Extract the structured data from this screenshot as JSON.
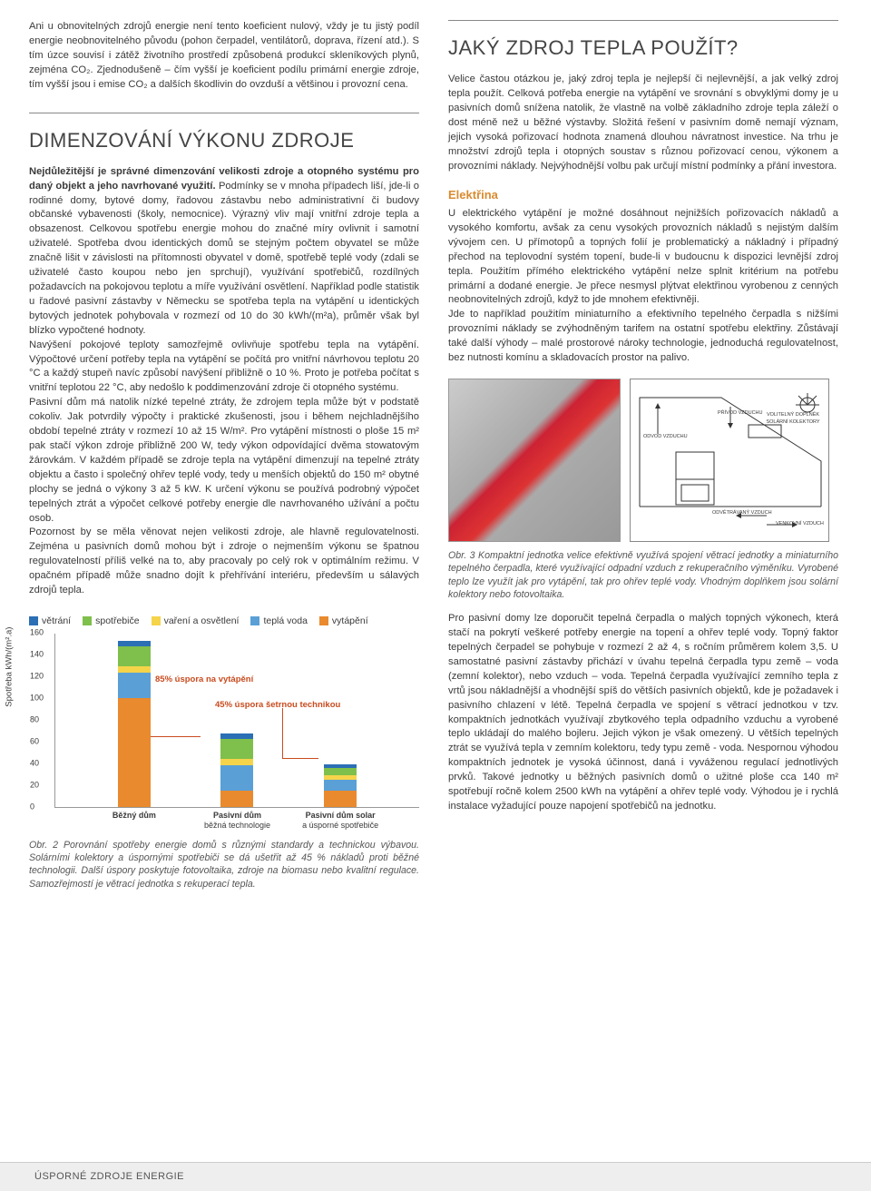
{
  "left": {
    "para1": "Ani u obnovitelných zdrojů energie není tento koeficient nulový, vždy je tu jistý podíl energie neobnovitelného původu (pohon čerpadel, ventilátorů, doprava, řízení atd.). S tím úzce souvisí i zátěž životního prostředí způsobená produkcí skleníkových plynů, zejména CO₂. Zjednodušeně – čím vyšší je koeficient podílu primární energie zdroje, tím vyšší jsou i emise CO₂ a dalších škodlivin do ovzduší a většinou i provozní cena.",
    "h2": "DIMENZOVÁNÍ VÝKONU ZDROJE",
    "lead": "Nejdůležitější je správné dimenzování velikosti zdroje a otopného systému pro daný objekt a jeho navrhované využití.",
    "para2a": " Podmínky se v mnoha případech liší, jde-li o rodinné domy, bytové domy, řadovou zástavbu nebo administrativní či budovy občanské vybavenosti (školy, nemocnice). Výrazný vliv mají vnitřní zdroje tepla a obsazenost. Celkovou spotřebu energie mohou do značné míry ovlivnit i samotní uživatelé. Spotřeba dvou identických domů se stejným počtem obyvatel se může značně lišit v závislosti na přítomnosti obyvatel v domě, spotřebě teplé vody (zdali se uživatelé často koupou nebo jen sprchují), využívání spotřebičů, rozdílných požadavcích na pokojovou teplotu a míře využívání osvětlení. Například podle statistik u řadové pasivní zástavby v Německu se spotřeba tepla na vytápění u identických bytových jednotek pohybovala v rozmezí od 10 do 30 kWh/(m²a), průměr však byl blízko vypočtené hodnoty.",
    "para2b": "Navýšení pokojové teploty samozřejmě ovlivňuje spotřebu tepla na vytápění. Výpočtové určení potřeby tepla na vytápění se počítá pro vnitřní návrhovou teplotu 20 °C a každý stupeň navíc způsobí navýšení přibližně o 10 %. Proto je potřeba počítat s vnitřní teplotou 22 °C, aby nedošlo k poddimenzování zdroje či otopného systému.",
    "para2c": "Pasivní dům má natolik nízké tepelné ztráty, že zdrojem tepla může být v podstatě cokoliv. Jak potvrdily výpočty i praktické zkušenosti, jsou i během nejchladnějšího období tepelné ztráty v rozmezí 10 až 15 W/m². Pro vytápění místnosti o ploše 15 m² pak stačí výkon zdroje přibližně 200 W, tedy výkon odpovídající dvěma stowatovým žárovkám. V každém případě se zdroje tepla na vytápění dimenzují na tepelné ztráty objektu a často i společný ohřev teplé vody, tedy u menších objektů do 150 m² obytné plochy se jedná o výkony 3 až 5 kW. K určení výkonu se používá podrobný výpočet tepelných ztrát a výpočet celkové potřeby energie dle navrhovaného užívání a počtu osob.",
    "para2d": "Pozornost by se měla věnovat nejen velikosti zdroje, ale hlavně regulovatelnosti. Zejména u pasivních domů mohou být i zdroje o nejmenším výkonu se špatnou regulovatelností příliš velké na to, aby pracovaly po celý rok v optimálním režimu. V opačném případě může snadno dojít k přehřívání interiéru, především u sálavých zdrojů tepla.",
    "fig2_caption": "Obr. 2 Porovnání spotřeby energie domů s různými standardy a technickou výbavou. Solárními kolektory a úspornými spotřebiči se dá ušetřit až 45 % nákladů proti běžné technologii. Další úspory poskytuje fotovoltaika, zdroje na biomasu nebo kvalitní regulace. Samozřejmostí je větrací jednotka s rekuperací tepla."
  },
  "chart": {
    "legend": [
      {
        "label": "větrání",
        "color": "#2b6fb5"
      },
      {
        "label": "spotřebiče",
        "color": "#7fbf4b"
      },
      {
        "label": "vaření a osvětlení",
        "color": "#f5d44a"
      },
      {
        "label": "teplá voda",
        "color": "#5aa0d6"
      },
      {
        "label": "vytápění",
        "color": "#e98a2e"
      }
    ],
    "yaxis_title": "Spotřeba kWh/(m².a)",
    "ymax": 160,
    "ticks": [
      0,
      20,
      40,
      60,
      80,
      100,
      120,
      140,
      160
    ],
    "bars": [
      {
        "label": "Běžný dům",
        "label2": "",
        "stacks": [
          {
            "v": 100,
            "c": "#e98a2e"
          },
          {
            "v": 23,
            "c": "#5aa0d6"
          },
          {
            "v": 6,
            "c": "#f5d44a"
          },
          {
            "v": 18,
            "c": "#7fbf4b"
          },
          {
            "v": 5,
            "c": "#2b6fb5"
          }
        ]
      },
      {
        "label": "Pasivní dům",
        "label2": "běžná technologie",
        "stacks": [
          {
            "v": 15,
            "c": "#e98a2e"
          },
          {
            "v": 23,
            "c": "#5aa0d6"
          },
          {
            "v": 6,
            "c": "#f5d44a"
          },
          {
            "v": 18,
            "c": "#7fbf4b"
          },
          {
            "v": 5,
            "c": "#2b6fb5"
          }
        ]
      },
      {
        "label": "Pasivní dům solar",
        "label2": "a úsporné spotřebiče",
        "stacks": [
          {
            "v": 15,
            "c": "#e98a2e"
          },
          {
            "v": 10,
            "c": "#5aa0d6"
          },
          {
            "v": 4,
            "c": "#f5d44a"
          },
          {
            "v": 7,
            "c": "#7fbf4b"
          },
          {
            "v": 3,
            "c": "#2b6fb5"
          }
        ]
      }
    ],
    "annot1": "85% úspora na vytápění",
    "annot2": "45% úspora šetrnou technikou"
  },
  "right": {
    "h2": "JAKÝ ZDROJ TEPLA POUŽÍT?",
    "para1": "Velice častou otázkou je, jaký zdroj tepla je nejlepší či nejlevnější, a jak velký zdroj tepla použít. Celková potřeba energie na vytápění ve srovnání s obvyklými domy je u pasivních domů snížena natolik, že vlastně na volbě základního zdroje tepla záleží o dost méně než u běžné výstavby. Složitá řešení v pasivním domě nemají význam, jejich vysoká pořizovací hodnota znamená dlouhou návratnost investice. Na trhu je množství zdrojů tepla i otopných soustav s různou pořizovací cenou, výkonem a provozními náklady. Nejvýhodnější volbu pak určují místní podmínky a přání investora.",
    "h3_elektrina": "Elektřina",
    "para2": "U elektrického vytápění je možné dosáhnout nejnižších pořizovacích nákladů a vysokého komfortu, avšak za cenu vysokých provozních nákladů s nejistým dalším vývojem cen. U přímotopů a topných folií je problematický a nákladný i případný přechod na teplovodní systém topení, bude-li v budoucnu k dispozici levnější zdroj tepla. Použitím přímého elektrického vytápění nelze splnit kritérium na potřebu primární a dodané energie. Je přece nesmysl plýtvat elektřinou vyrobenou z cenných neobnovitelných zdrojů, když to jde mnohem efektivněji.",
    "para3": "Jde to například použitím miniaturního a efektivního tepelného čerpadla s nižšími provozními náklady se zvýhodněným tarifem na ostatní spotřebu elektřiny. Zůstávají také další výhody – malé prostorové nároky technologie, jednoduchá regulovatelnost, bez nutnosti komínu a skladovacích prostor na palivo.",
    "fig3_caption": "Obr. 3 Kompaktní jednotka velice efektivně využívá spojení větrací jednotky a miniaturního tepelného čerpadla, které využívající odpadní vzduch z rekuperačního výměníku. Vyrobené teplo lze využít jak pro vytápění, tak pro ohřev teplé vody. Vhodným doplňkem jsou solární kolektory nebo fotovoltaika.",
    "para4": "Pro pasivní domy lze doporučit tepelná čerpadla o malých topných výkonech, která stačí na pokrytí veškeré potřeby energie na topení a ohřev teplé vody. Topný faktor tepelných čerpadel se pohybuje v rozmezí 2 až 4, s ročním průměrem kolem 3,5. U samostatné pasivní zástavby přichází v úvahu tepelná čerpadla typu země – voda (zemní kolektor), nebo vzduch – voda. Tepelná čerpadla využívající zemního tepla z vrtů jsou nákladnější a vhodnější spíš do větších pasivních objektů, kde je požadavek i pasivního chlazení v létě. Tepelná čerpadla ve spojení s větrací jednotkou v tzv. kompaktních jednotkách využívají zbytkového tepla odpadního vzduchu a vyrobené teplo ukládají do malého bojleru. Jejich výkon je však omezený. U větších tepelných ztrát se využívá tepla v zemním kolektoru, tedy typu země - voda. Nespornou výhodou kompaktních jednotek je vysoká účinnost, daná i vyváženou regulací jednotlivých prvků. Takové jednotky u běžných pasivních domů o užitné ploše cca 140 m² spotřebují ročně kolem 2500 kWh na vytápění a ohřev teplé vody. Výhodou je i rychlá instalace vyžadující pouze napojení spotřebičů na jednotku."
  },
  "diagram_labels": {
    "a": "VOLITELNÝ DOPLNĚK SOLÁRNÍ KOLEKTORY",
    "b": "ODVOD VZDUCHU",
    "c": "PŘÍVOD VZDUCHU",
    "d": "ODVĚTRÁVANÝ VZDUCH",
    "e": "VENKOVNÍ VZDUCH"
  },
  "footer": "ÚSPORNÉ ZDROJE ENERGIE"
}
